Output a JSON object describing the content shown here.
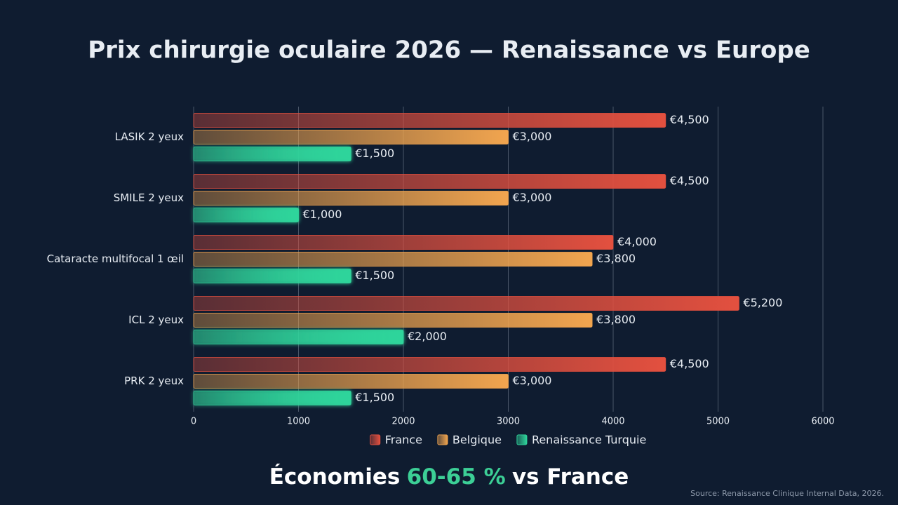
{
  "chart_data": {
    "type": "bar",
    "orientation": "horizontal",
    "title": "Prix chirurgie oculaire 2026 — Renaissance vs Europe",
    "categories": [
      "LASIK 2 yeux",
      "SMILE 2 yeux",
      "Cataracte multifocal 1 œil",
      "ICL 2 yeux",
      "PRK 2 yeux"
    ],
    "series": [
      {
        "name": "France",
        "color": "#e3503f",
        "values": [
          4500,
          4500,
          4000,
          5200,
          4500
        ],
        "value_labels": [
          "€4,500",
          "€4,500",
          "€4,000",
          "€5,200",
          "€4,500"
        ]
      },
      {
        "name": "Belgique",
        "color": "#f2a54f",
        "values": [
          3000,
          3000,
          3800,
          3800,
          3000
        ],
        "value_labels": [
          "€3,000",
          "€3,000",
          "€3,800",
          "€3,800",
          "€3,000"
        ]
      },
      {
        "name": "Renaissance Turquie",
        "color": "#2fd49b",
        "values": [
          1500,
          1000,
          1500,
          2000,
          1500
        ],
        "value_labels": [
          "€1,500",
          "€1,000",
          "€1,500",
          "€2,000",
          "€1,500"
        ]
      }
    ],
    "xlim": [
      0,
      6000
    ],
    "xticks": [
      0,
      1000,
      2000,
      3000,
      4000,
      5000,
      6000
    ],
    "grid": true,
    "legend": "bottom"
  },
  "footer": {
    "headline": [
      "Économies",
      "60-65 %",
      "vs France"
    ],
    "source": "Source: Renaissance Clinique Internal Data, 2026."
  }
}
